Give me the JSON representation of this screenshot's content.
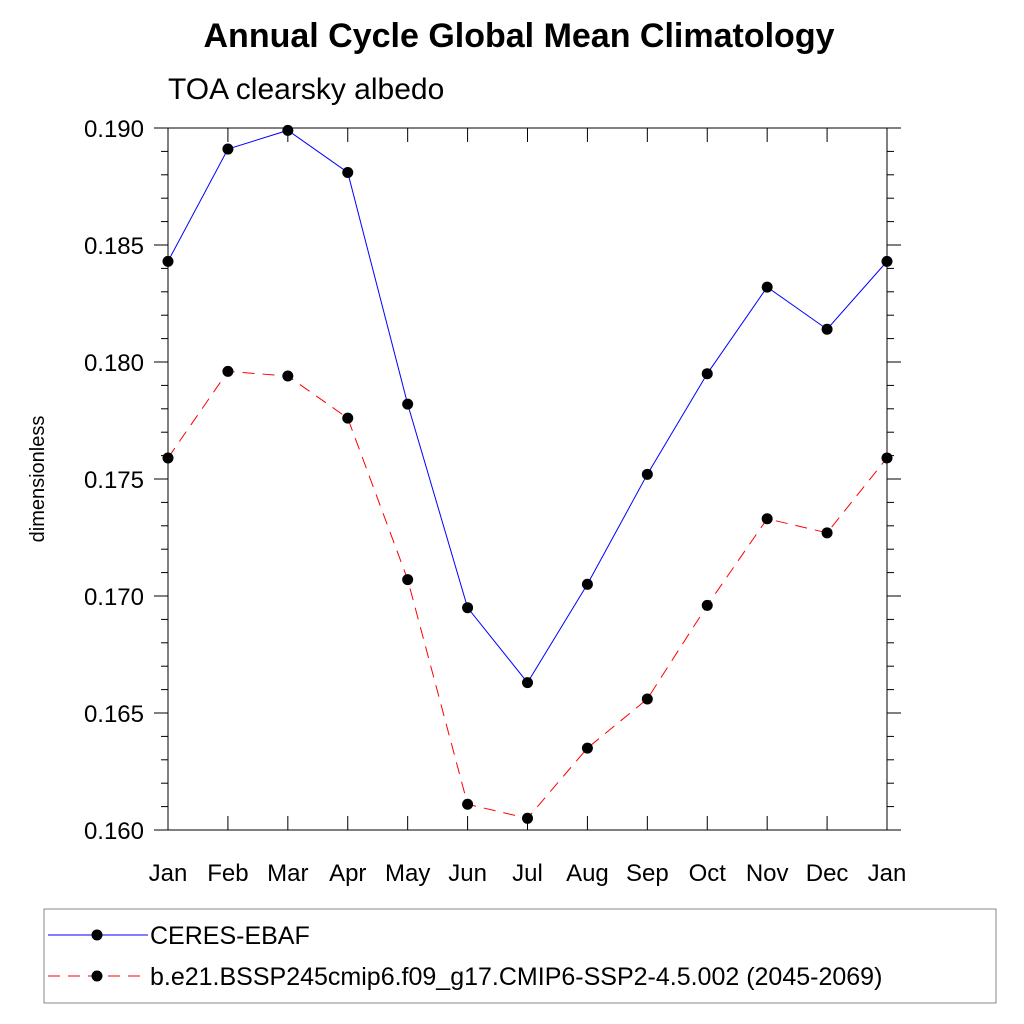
{
  "chart_data": {
    "type": "line",
    "title": "Annual Cycle Global Mean Climatology",
    "subtitle": "TOA clearsky albedo",
    "xlabel": "",
    "ylabel": "dimensionless",
    "categories": [
      "Jan",
      "Feb",
      "Mar",
      "Apr",
      "May",
      "Jun",
      "Jul",
      "Aug",
      "Sep",
      "Oct",
      "Nov",
      "Dec",
      "Jan"
    ],
    "ylim": [
      0.16,
      0.19
    ],
    "yticks": [
      "0.160",
      "0.165",
      "0.170",
      "0.175",
      "0.180",
      "0.185",
      "0.190"
    ],
    "grid": false,
    "legend_position": "bottom",
    "series": [
      {
        "name": "CERES-EBAF",
        "color": "#0000ff",
        "line_style": "solid",
        "marker": "filled-circle",
        "values": [
          0.1843,
          0.1891,
          0.1899,
          0.1881,
          0.1782,
          0.1695,
          0.1663,
          0.1705,
          0.1752,
          0.1795,
          0.1832,
          0.1814,
          0.1843
        ]
      },
      {
        "name": "b.e21.BSSP245cmip6.f09_g17.CMIP6-SSP2-4.5.002 (2045-2069)",
        "color": "#ff0000",
        "line_style": "dashed",
        "marker": "filled-circle",
        "values": [
          0.1759,
          0.1796,
          0.1794,
          0.1776,
          0.1707,
          0.1611,
          0.1605,
          0.1635,
          0.1656,
          0.1696,
          0.1733,
          0.1727,
          0.1759
        ]
      }
    ]
  }
}
